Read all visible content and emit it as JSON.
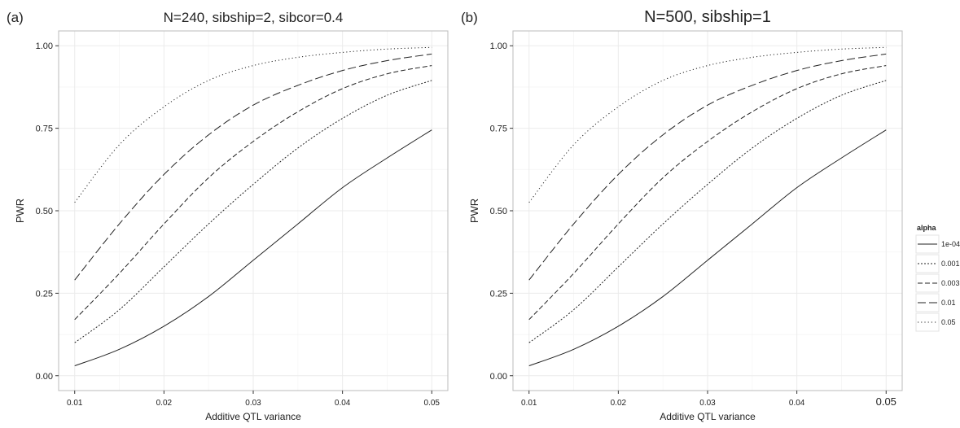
{
  "chart_data": [
    {
      "type": "line",
      "panel_label": "(a)",
      "title": "N=240, sibship=2, sibcor=0.4",
      "xlabel": "Additive QTL variance",
      "ylabel": "PWR",
      "xlim": [
        0.01,
        0.05
      ],
      "ylim": [
        0.0,
        1.0
      ],
      "xticks": [
        "0.01",
        "0.02",
        "0.03",
        "0.04",
        "0.05"
      ],
      "yticks": [
        "0.00",
        "0.25",
        "0.50",
        "0.75",
        "1.00"
      ],
      "grid": true,
      "x": [
        0.01,
        0.015,
        0.02,
        0.025,
        0.03,
        0.035,
        0.04,
        0.045,
        0.05
      ],
      "series": [
        {
          "name": "1e-04",
          "values": [
            0.03,
            0.08,
            0.15,
            0.24,
            0.35,
            0.46,
            0.57,
            0.66,
            0.745
          ]
        },
        {
          "name": "0.001",
          "values": [
            0.1,
            0.2,
            0.33,
            0.46,
            0.58,
            0.69,
            0.78,
            0.85,
            0.895
          ]
        },
        {
          "name": "0.003",
          "values": [
            0.17,
            0.31,
            0.46,
            0.6,
            0.71,
            0.8,
            0.87,
            0.915,
            0.94
          ]
        },
        {
          "name": "0.01",
          "values": [
            0.29,
            0.46,
            0.61,
            0.73,
            0.82,
            0.88,
            0.925,
            0.955,
            0.975
          ]
        },
        {
          "name": "0.05",
          "values": [
            0.525,
            0.7,
            0.815,
            0.895,
            0.94,
            0.965,
            0.98,
            0.99,
            0.995
          ]
        }
      ]
    },
    {
      "type": "line",
      "panel_label": "(b)",
      "title": "N=500, sibship=1",
      "xlabel": "Additive QTL variance",
      "ylabel": "PWR",
      "xlim": [
        0.01,
        0.05
      ],
      "ylim": [
        0.0,
        1.0
      ],
      "xticks": [
        "0.01",
        "0.02",
        "0.03",
        "0.04",
        "0.05"
      ],
      "yticks": [
        "0.00",
        "0.25",
        "0.50",
        "0.75",
        "1.00"
      ],
      "grid": true,
      "x": [
        0.01,
        0.015,
        0.02,
        0.025,
        0.03,
        0.035,
        0.04,
        0.045,
        0.05
      ],
      "series": [
        {
          "name": "1e-04",
          "values": [
            0.03,
            0.08,
            0.15,
            0.24,
            0.35,
            0.46,
            0.57,
            0.66,
            0.745
          ]
        },
        {
          "name": "0.001",
          "values": [
            0.1,
            0.2,
            0.33,
            0.46,
            0.58,
            0.69,
            0.78,
            0.85,
            0.895
          ]
        },
        {
          "name": "0.003",
          "values": [
            0.17,
            0.31,
            0.46,
            0.6,
            0.71,
            0.8,
            0.87,
            0.915,
            0.94
          ]
        },
        {
          "name": "0.01",
          "values": [
            0.29,
            0.46,
            0.61,
            0.73,
            0.82,
            0.88,
            0.925,
            0.955,
            0.975
          ]
        },
        {
          "name": "0.05",
          "values": [
            0.525,
            0.7,
            0.815,
            0.895,
            0.94,
            0.965,
            0.98,
            0.99,
            0.995
          ]
        }
      ]
    }
  ],
  "legend": {
    "title": "alpha",
    "placement": "right",
    "items": [
      {
        "label": "1e-04",
        "dash": "solid"
      },
      {
        "label": "0.001",
        "dash": "fine-dotted"
      },
      {
        "label": "0.003",
        "dash": "dashed"
      },
      {
        "label": "0.01",
        "dash": "long-dashed"
      },
      {
        "label": "0.05",
        "dash": "dotted"
      }
    ]
  },
  "colors": {
    "line": "#222222",
    "grid_major": "#ebebeb",
    "grid_minor": "#f5f5f5",
    "panel_border": "#bbbbbb",
    "axis_text": "#4d4d4d"
  }
}
